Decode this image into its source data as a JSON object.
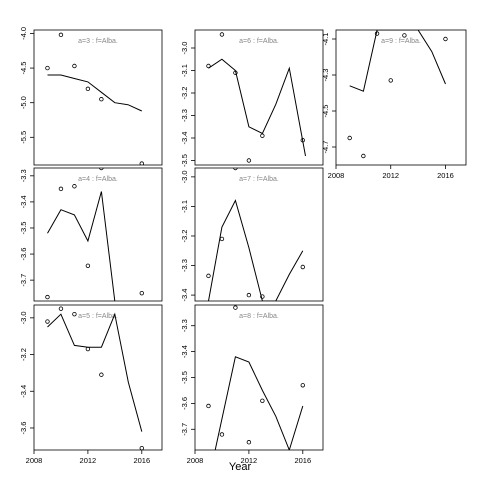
{
  "figure": {
    "xlabel": "Year",
    "panel_label_sep": " : "
  },
  "chart_data": [
    {
      "type": "line",
      "label_a": "a=3",
      "label_f": "f=Alba.",
      "xlim": [
        2008,
        2017.5
      ],
      "ylim": [
        -5.9,
        -3.95
      ],
      "yticks": [
        -4.0,
        -4.5,
        -5.0,
        -5.5
      ],
      "ytick_labels": [
        "-4.0",
        "-4.5",
        "-5.0",
        "-5.5"
      ],
      "xticks": [],
      "xtick_labels": [],
      "line": {
        "x": [
          2009,
          2010,
          2011,
          2012,
          2013,
          2014,
          2015,
          2016
        ],
        "y": [
          -4.6,
          -4.6,
          -4.65,
          -4.7,
          -4.85,
          -5.0,
          -5.03,
          -5.12
        ]
      },
      "points": {
        "x": [
          2009,
          2010,
          2011,
          2012,
          2013,
          2016
        ],
        "y": [
          -4.5,
          -4.02,
          -4.47,
          -4.8,
          -4.95,
          -5.88
        ]
      }
    },
    {
      "type": "line",
      "label_a": "a=4",
      "label_f": "f=Alba.",
      "xlim": [
        2008,
        2017.5
      ],
      "ylim": [
        -3.78,
        -3.27
      ],
      "yticks": [
        -3.3,
        -3.4,
        -3.5,
        -3.6,
        -3.7
      ],
      "ytick_labels": [
        "-3.3",
        "-3.4",
        "-3.5",
        "-3.6",
        "-3.7"
      ],
      "xticks": [],
      "xtick_labels": [],
      "line": {
        "x": [
          2009,
          2010,
          2011,
          2012,
          2013,
          2014
        ],
        "y": [
          -3.52,
          -3.43,
          -3.45,
          -3.55,
          -3.36,
          -3.78
        ]
      },
      "points": {
        "x": [
          2009,
          2010,
          2011,
          2012,
          2013,
          2016
        ],
        "y": [
          -3.765,
          -3.35,
          -3.34,
          -3.645,
          -3.27,
          -3.75
        ]
      }
    },
    {
      "type": "line",
      "label_a": "a=5",
      "label_f": "f=Alba.",
      "xlim": [
        2008,
        2017.5
      ],
      "ylim": [
        -3.72,
        -2.93
      ],
      "yticks": [
        -3.0,
        -3.2,
        -3.4,
        -3.6
      ],
      "ytick_labels": [
        "-3.0",
        "-3.2",
        "-3.4",
        "-3.6"
      ],
      "xticks": [
        2008,
        2012,
        2016
      ],
      "xtick_labels": [
        "2008",
        "2012",
        "2016"
      ],
      "line": {
        "x": [
          2009,
          2010,
          2011,
          2012,
          2013,
          2014,
          2015,
          2016
        ],
        "y": [
          -3.05,
          -2.98,
          -3.15,
          -3.16,
          -3.16,
          -2.98,
          -3.35,
          -3.62
        ]
      },
      "points": {
        "x": [
          2009,
          2010,
          2011,
          2012,
          2013,
          2016
        ],
        "y": [
          -3.02,
          -2.95,
          -2.98,
          -3.17,
          -3.31,
          -3.71
        ]
      }
    },
    {
      "type": "line",
      "label_a": "a=6",
      "label_f": "f=Alba.",
      "xlim": [
        2008,
        2017.5
      ],
      "ylim": [
        -3.52,
        -2.92
      ],
      "yticks": [
        -3.0,
        -3.1,
        -3.2,
        -3.3,
        -3.4,
        -3.5
      ],
      "ytick_labels": [
        "-3.0",
        "-3.1",
        "-3.2",
        "-3.3",
        "-3.4",
        "-3.5"
      ],
      "xticks": [],
      "xtick_labels": [],
      "line": {
        "x": [
          2009,
          2010,
          2011,
          2012,
          2013,
          2014,
          2015,
          2016.2
        ],
        "y": [
          -3.09,
          -3.05,
          -3.1,
          -3.35,
          -3.38,
          -3.25,
          -3.09,
          -3.48
        ]
      },
      "points": {
        "x": [
          2009,
          2010,
          2011,
          2012,
          2013,
          2016
        ],
        "y": [
          -3.08,
          -2.94,
          -3.11,
          -3.5,
          -3.39,
          -3.41
        ]
      }
    },
    {
      "type": "line",
      "label_a": "a=7",
      "label_f": "f=Alba.",
      "xlim": [
        2008,
        2017.5
      ],
      "ylim": [
        -3.42,
        -2.97
      ],
      "yticks": [
        -3.0,
        -3.1,
        -3.2,
        -3.3,
        -3.4
      ],
      "ytick_labels": [
        "-3.0",
        "-3.1",
        "-3.2",
        "-3.3",
        "-3.4"
      ],
      "xticks": [],
      "xtick_labels": [],
      "line": {
        "x": [
          2009,
          2010,
          2011,
          2012,
          2013,
          2014,
          2015,
          2016
        ],
        "y": [
          -3.42,
          -3.17,
          -3.08,
          -3.24,
          -3.42,
          -3.42,
          -3.33,
          -3.25
        ]
      },
      "points": {
        "x": [
          2009,
          2010,
          2011,
          2012,
          2013,
          2016
        ],
        "y": [
          -3.335,
          -3.21,
          -2.97,
          -3.4,
          -3.405,
          -3.305
        ]
      }
    },
    {
      "type": "line",
      "label_a": "a=8",
      "label_f": "f=Alba.",
      "xlim": [
        2008,
        2017.5
      ],
      "ylim": [
        -3.78,
        -3.22
      ],
      "yticks": [
        -3.3,
        -3.4,
        -3.5,
        -3.6,
        -3.7
      ],
      "ytick_labels": [
        "-3.3",
        "-3.4",
        "-3.5",
        "-3.6",
        "-3.7"
      ],
      "xticks": [
        2008,
        2012,
        2016
      ],
      "xtick_labels": [
        "2008",
        "2012",
        "2016"
      ],
      "line": {
        "x": [
          2009.5,
          2011,
          2012,
          2013,
          2014,
          2015,
          2016
        ],
        "y": [
          -3.78,
          -3.42,
          -3.44,
          -3.55,
          -3.65,
          -3.78,
          -3.61
        ]
      },
      "points": {
        "x": [
          2009,
          2010,
          2011,
          2012,
          2013,
          2016
        ],
        "y": [
          -3.61,
          -3.72,
          -3.23,
          -3.75,
          -3.59,
          -3.53
        ]
      }
    },
    {
      "type": "line",
      "label_a": "a=9",
      "label_f": "f=Alba.",
      "xlim": [
        2008,
        2017.5
      ],
      "ylim": [
        -4.8,
        -4.05
      ],
      "yticks": [
        -4.1,
        -4.3,
        -4.5,
        -4.7
      ],
      "ytick_labels": [
        "-4.1",
        "-4.3",
        "-4.5",
        "-4.7"
      ],
      "xticks": [
        2008,
        2012,
        2016
      ],
      "xtick_labels": [
        "2008",
        "2012",
        "2016"
      ],
      "line": {
        "x": [
          2009,
          2010,
          2011,
          2012,
          2013,
          2014,
          2015,
          2016
        ],
        "y": [
          -4.36,
          -4.39,
          -4.05,
          -4.05,
          -4.05,
          -4.05,
          -4.17,
          -4.35
        ]
      },
      "points": {
        "x": [
          2009,
          2010,
          2011,
          2012,
          2013,
          2016
        ],
        "y": [
          -4.65,
          -4.75,
          -4.07,
          -4.33,
          -4.08,
          -4.1
        ]
      }
    }
  ]
}
